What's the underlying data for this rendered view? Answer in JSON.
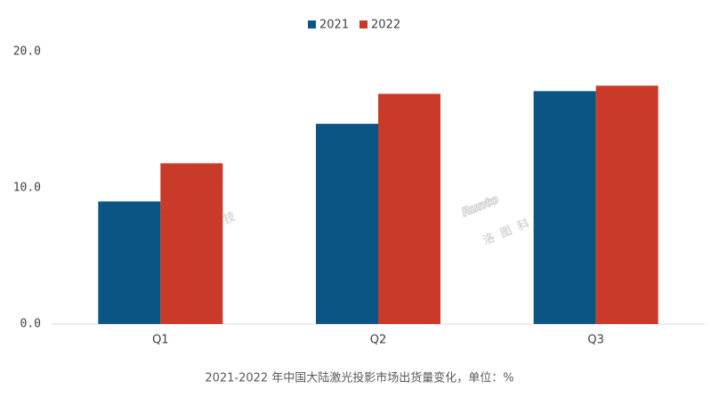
{
  "chart_data": {
    "type": "bar",
    "categories": [
      "Q1",
      "Q2",
      "Q3"
    ],
    "series": [
      {
        "name": "2021",
        "color": "#0b5585",
        "values": [
          9.0,
          14.7,
          17.1
        ]
      },
      {
        "name": "2022",
        "color": "#c93a29",
        "values": [
          11.8,
          16.9,
          17.5
        ]
      }
    ],
    "ylim": [
      0,
      20
    ],
    "yticks": [
      {
        "value": 0,
        "label": "0.0"
      },
      {
        "value": 10,
        "label": "10.0"
      },
      {
        "value": 20,
        "label": "20.0"
      }
    ],
    "grid": false,
    "legend": "top",
    "caption": "2021-2022 年中国大陆激光投影市场出货量变化，单位：%",
    "watermark": {
      "brand": "Runto",
      "name": "洛图科技"
    }
  }
}
